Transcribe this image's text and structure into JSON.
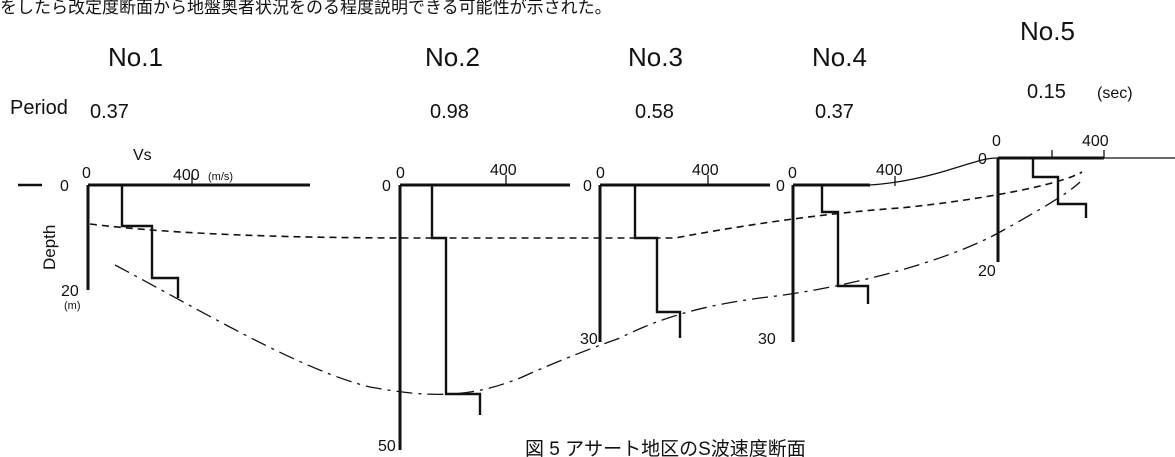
{
  "header_text": "をしたら改定度断面から地盤奥者状況をのる程度説明できる可能性が示された。",
  "caption": "図 5 アサート地区のS波速度断面",
  "labels": {
    "period": "Period",
    "sec_unit": "(sec)",
    "vs": "Vs",
    "vs_unit": "(m/s)",
    "depth": "Depth",
    "depth_unit": "(m)"
  },
  "sites": [
    {
      "name": "No.1",
      "period": "0.37",
      "vs_tick": "400",
      "depth_tick": "20",
      "vs_profile": [
        {
          "from": 0,
          "to": 8,
          "vs": 120
        },
        {
          "from": 8,
          "to": 17,
          "vs": 250
        },
        {
          "from": 17,
          "to": 21,
          "vs": 330
        }
      ]
    },
    {
      "name": "No.2",
      "period": "0.98",
      "vs_tick": "400",
      "depth_tick": "50",
      "vs_profile": [
        {
          "from": 0,
          "to": 10,
          "vs": 120
        },
        {
          "from": 10,
          "to": 39,
          "vs": 170
        },
        {
          "from": 39,
          "to": 43,
          "vs": 330
        }
      ]
    },
    {
      "name": "No.3",
      "period": "0.58",
      "vs_tick": "400",
      "depth_tick": "30",
      "vs_profile": [
        {
          "from": 0,
          "to": 10,
          "vs": 130
        },
        {
          "from": 10,
          "to": 23,
          "vs": 220
        },
        {
          "from": 23,
          "to": 27,
          "vs": 330
        }
      ]
    },
    {
      "name": "No.4",
      "period": "0.37",
      "vs_tick": "400",
      "depth_tick": "30",
      "vs_profile": [
        {
          "from": 0,
          "to": 5,
          "vs": 120
        },
        {
          "from": 5,
          "to": 18,
          "vs": 170
        },
        {
          "from": 18,
          "to": 21,
          "vs": 320
        }
      ]
    },
    {
      "name": "No.5",
      "period": "0.15",
      "vs_tick": "400",
      "depth_tick": "20",
      "vs_profile": [
        {
          "from": 0,
          "to": 3,
          "vs": 150
        },
        {
          "from": 3,
          "to": 7,
          "vs": 230
        },
        {
          "from": 7,
          "to": 10,
          "vs": 330
        }
      ]
    }
  ]
}
